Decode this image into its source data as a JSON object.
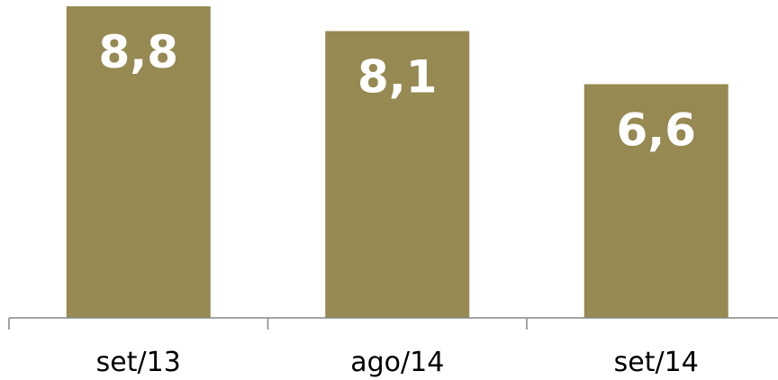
{
  "chart_data": {
    "type": "bar",
    "categories": [
      "set/13",
      "ago/14",
      "set/14"
    ],
    "values": [
      8.8,
      8.1,
      6.6
    ],
    "data_labels": [
      "8,8",
      "8,1",
      "6,6"
    ],
    "title": "",
    "xlabel": "",
    "ylabel": "",
    "ylim": [
      0,
      8.8
    ],
    "grid": false,
    "legend": "none",
    "colors": {
      "bar": "#968952",
      "data_label": "#ffffff",
      "axis": "#868686",
      "tick_label": "#000000",
      "background": "#ffffff"
    }
  }
}
